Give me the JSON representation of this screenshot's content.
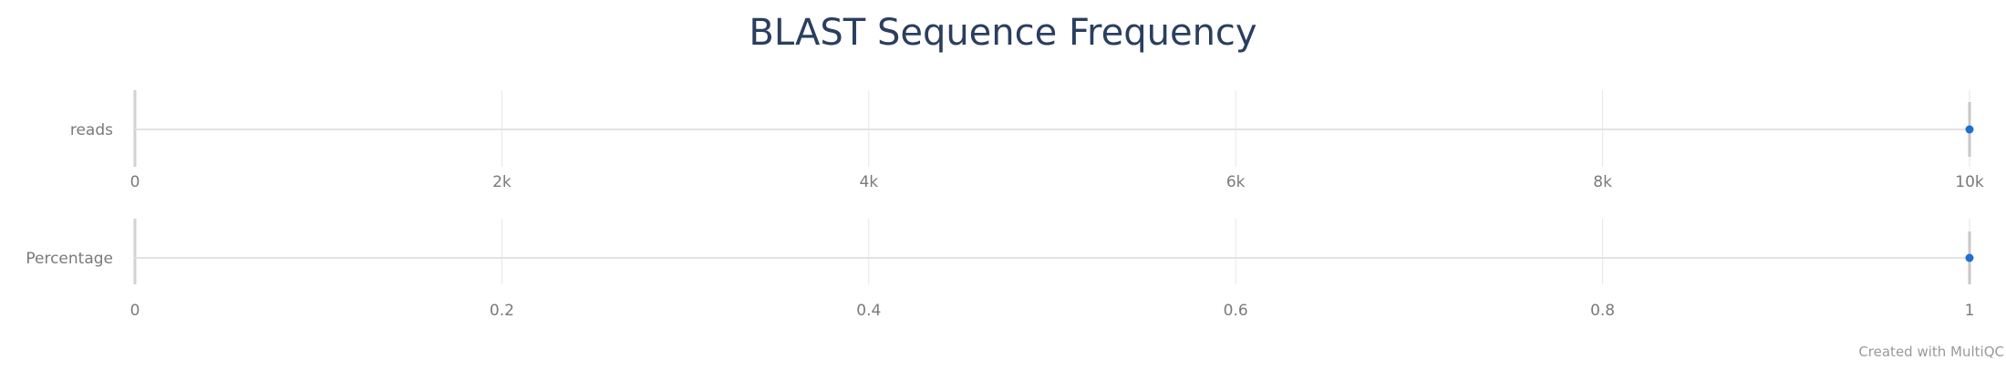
{
  "chart_data": {
    "type": "scatter",
    "title": "BLAST Sequence Frequency",
    "credit": "Created with MultiQC",
    "point_color": "#1f6fd0",
    "panels": [
      {
        "name": "reads",
        "label": "reads",
        "xlim": [
          0,
          10000
        ],
        "ticks": [
          0,
          2000,
          4000,
          6000,
          8000,
          10000
        ],
        "tick_labels": [
          "0",
          "2k",
          "4k",
          "6k",
          "8k",
          "10k"
        ],
        "values": [
          10000
        ],
        "grid": true
      },
      {
        "name": "percentage",
        "label": "Percentage",
        "xlim": [
          0,
          1
        ],
        "ticks": [
          0,
          0.2,
          0.4,
          0.6,
          0.8,
          1
        ],
        "tick_labels": [
          "0",
          "0.2",
          "0.4",
          "0.6",
          "0.8",
          "1"
        ],
        "values": [
          1
        ],
        "grid": true
      }
    ]
  }
}
